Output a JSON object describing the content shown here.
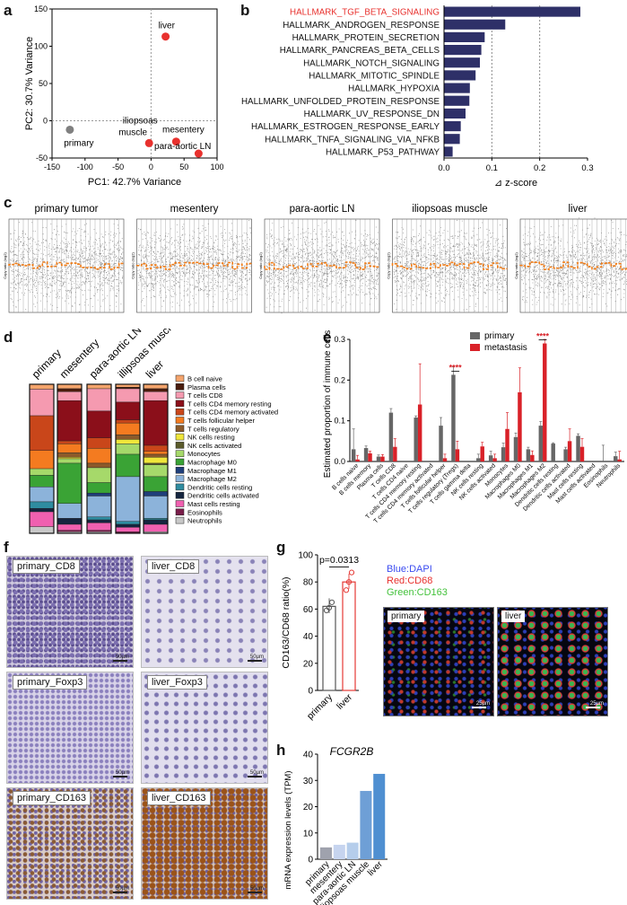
{
  "panels": {
    "a": "a",
    "b": "b",
    "c": "c",
    "d": "d",
    "e": "e",
    "f": "f",
    "g": "g",
    "h": "h"
  },
  "chart_data": [
    {
      "id": "a",
      "type": "scatter",
      "title": "",
      "xlabel": "PC1: 42.7% Variance",
      "ylabel": "PC2: 30.7% Variance",
      "xlim": [
        -150,
        100
      ],
      "ylim": [
        -50,
        150
      ],
      "xticks": [
        "-150",
        "-100",
        "-50",
        "0",
        "50",
        "100"
      ],
      "yticks": [
        "-50",
        "0",
        "50",
        "100",
        "150"
      ],
      "points": [
        {
          "label": "liver",
          "x": 22,
          "y": 113,
          "color": "#e8312e"
        },
        {
          "label": "primary",
          "x": -123,
          "y": -12,
          "color": "#808080"
        },
        {
          "label": "iliopsoas muscle",
          "x": -3,
          "y": -30,
          "color": "#e8312e"
        },
        {
          "label": "mesentery",
          "x": 38,
          "y": -28,
          "color": "#e8312e"
        },
        {
          "label": "para-aortic LN",
          "x": 72,
          "y": -44,
          "color": "#e8312e"
        }
      ]
    },
    {
      "id": "b",
      "type": "bar",
      "orientation": "horizontal",
      "xlabel": "⊿ z-score",
      "xlim": [
        0,
        0.3
      ],
      "xticks": [
        "0.0",
        "0.1",
        "0.2",
        "0.3"
      ],
      "highlight_color": "#e8312e",
      "bar_color": "#2e3068",
      "categories": [
        "HALLMARK_TGF_BETA_SIGNALING",
        "HALLMARK_ANDROGEN_RESPONSE",
        "HALLMARK_PROTEIN_SECRETION",
        "HALLMARK_PANCREAS_BETA_CELLS",
        "HALLMARK_NOTCH_SIGNALING",
        "HALLMARK_MITOTIC_SPINDLE",
        "HALLMARK_HYPOXIA",
        "HALLMARK_UNFOLDED_PROTEIN_RESPONSE",
        "HALLMARK_UV_RESPONSE_DN",
        "HALLMARK_ESTROGEN_RESPONSE_EARLY",
        "HALLMARK_TNFA_SIGNALING_VIA_NFKB",
        "HALLMARK_P53_PATHWAY"
      ],
      "values": [
        0.285,
        0.128,
        0.085,
        0.078,
        0.075,
        0.066,
        0.054,
        0.053,
        0.045,
        0.035,
        0.033,
        0.018
      ]
    },
    {
      "id": "c",
      "type": "scatter",
      "subtype": "copy-number",
      "panels": [
        "primary tumor",
        "mesentery",
        "para-aortic LN",
        "iliopsoas muscle",
        "liver"
      ],
      "ylabel": "Copy ratio (log2)"
    },
    {
      "id": "d",
      "type": "bar",
      "subtype": "stacked-100",
      "samples": [
        "primary",
        "mesentery",
        "para-aortic LN",
        "illipsoas muscle",
        "liver"
      ],
      "legend": [
        {
          "name": "B cell naive",
          "color": "#f4a46c"
        },
        {
          "name": "Plasma cells",
          "color": "#4a1c0d"
        },
        {
          "name": "T cells CD8",
          "color": "#f59ab0"
        },
        {
          "name": "T cells CD4 memory resting",
          "color": "#8b0f1a"
        },
        {
          "name": "T cells CD4 memory activated",
          "color": "#c9461a"
        },
        {
          "name": "T cells follicular helper",
          "color": "#f47b20"
        },
        {
          "name": "T cells regulatory",
          "color": "#8c5a2b"
        },
        {
          "name": "NK cells resting",
          "color": "#f0e63a"
        },
        {
          "name": "NK cells activated",
          "color": "#5a5a2a"
        },
        {
          "name": "Monocytes",
          "color": "#a6d96a"
        },
        {
          "name": "Macrophage M0",
          "color": "#3aa335"
        },
        {
          "name": "Macrophage M1",
          "color": "#1f3e7a"
        },
        {
          "name": "Macrophage M2",
          "color": "#8cb3da"
        },
        {
          "name": "Dendritic cells resting",
          "color": "#2f8ca0"
        },
        {
          "name": "Dendritic cells activated",
          "color": "#15253f"
        },
        {
          "name": "Mast cells resting",
          "color": "#f060b0"
        },
        {
          "name": "Eosinophils",
          "color": "#7a1e4a"
        },
        {
          "name": "Neutrophils",
          "color": "#c8c8c8"
        }
      ],
      "stacks": [
        [
          3,
          0,
          16,
          0,
          21,
          11,
          0,
          0,
          0,
          4,
          7,
          0,
          9,
          4,
          2,
          9,
          0,
          4
        ],
        [
          3,
          2,
          6,
          27,
          2,
          6,
          3,
          1,
          0,
          3,
          27,
          0,
          10,
          0,
          4,
          4,
          1,
          1
        ],
        [
          3,
          0,
          15,
          18,
          7,
          10,
          3,
          0,
          0,
          10,
          7,
          2,
          14,
          2,
          2,
          5,
          1,
          1
        ],
        [
          2,
          1,
          9,
          12,
          2,
          8,
          3,
          3,
          0,
          7,
          15,
          0,
          30,
          2,
          2,
          3,
          1,
          0
        ],
        [
          3,
          2,
          6,
          30,
          4,
          2,
          2,
          4,
          1,
          8,
          10,
          3,
          15,
          1,
          3,
          5,
          0,
          1
        ]
      ]
    },
    {
      "id": "e",
      "type": "bar",
      "ylabel": "Estimated proportion of immune cells",
      "ylim": [
        0,
        0.3
      ],
      "yticks": [
        "0.0",
        "0.1",
        "0.2",
        "0.3"
      ],
      "legend": [
        {
          "name": "primary",
          "color": "#666666"
        },
        {
          "name": "metastasis",
          "color": "#d92128"
        }
      ],
      "categories": [
        "B cells naive",
        "B cells memory",
        "Plasma cells",
        "T cells CD8",
        "T cells CD4 naive",
        "T cells CD4 memory resting",
        "T cells CD4 memory activated",
        "T cells follicular helper",
        "T cells regulatory (Tregs)",
        "T cells gamma delta",
        "NK cells resting",
        "NK cells activated",
        "Monocytes",
        "Macrophages M0",
        "Macrophages M1",
        "Macrophages M2",
        "Dendritic cells resting",
        "Dendritic cells activated",
        "Mast cells resting",
        "Mast cells activated",
        "Eosinophils",
        "Neutrophils"
      ],
      "series": [
        {
          "name": "primary",
          "values": [
            0.03,
            0.033,
            0.012,
            0.12,
            0.0,
            0.108,
            0.0,
            0.088,
            0.213,
            0.0,
            0.008,
            0.015,
            0.035,
            0.06,
            0.03,
            0.088,
            0.044,
            0.03,
            0.063,
            0.0,
            0.0,
            0.013
          ]
        },
        {
          "name": "metastasis",
          "values": [
            0.005,
            0.02,
            0.012,
            0.036,
            0.0,
            0.14,
            0.0,
            0.008,
            0.03,
            0.0,
            0.037,
            0.008,
            0.08,
            0.17,
            0.016,
            0.29,
            0.0,
            0.05,
            0.036,
            0.0,
            0.0,
            0.005
          ]
        }
      ],
      "errors": [
        [
          0.05,
          0.005,
          0.004,
          0.01,
          0,
          0.004,
          0,
          0.02,
          0.02,
          0,
          0.01,
          0.01,
          0.01,
          0.01,
          0.005,
          0.01,
          0.002,
          0.005,
          0.005,
          0,
          0.04,
          0.01
        ],
        [
          0.01,
          0.005,
          0.005,
          0.02,
          0,
          0.1,
          0,
          0.01,
          0.02,
          0,
          0.01,
          0.01,
          0.04,
          0.06,
          0.01,
          0.01,
          0,
          0.03,
          0.02,
          0,
          0,
          0.02
        ]
      ],
      "significance": [
        {
          "category": "T cells regulatory (Tregs)",
          "label": "****"
        },
        {
          "category": "Macrophages M2",
          "label": "****"
        }
      ]
    },
    {
      "id": "g",
      "type": "bar",
      "ylabel": "CD163/CD68 ratio(%)",
      "ylim": [
        0,
        100
      ],
      "yticks": [
        "0",
        "20",
        "40",
        "60",
        "80",
        "100"
      ],
      "categories": [
        "primary",
        "liver"
      ],
      "values": [
        62,
        80
      ],
      "points": [
        [
          59,
          61,
          65
        ],
        [
          74,
          80,
          87
        ]
      ],
      "pvalue": "p=0.0313",
      "colors": [
        "#555555",
        "#e53935"
      ]
    },
    {
      "id": "h",
      "type": "bar",
      "title": "FCGR2B",
      "ylabel": "mRNA expression levels (TPM)",
      "ylim": [
        0,
        40
      ],
      "yticks": [
        "0",
        "10",
        "20",
        "30",
        "40"
      ],
      "categories": [
        "primary",
        "mesentery",
        "para-aortic LN",
        "iliopsoas muscle",
        "liver"
      ],
      "values": [
        4.5,
        5.5,
        6.3,
        26,
        32.5
      ],
      "colors": [
        "#9fa2ad",
        "#c6d4ef",
        "#b5cdeb",
        "#6e9fd6",
        "#4f8fd1"
      ]
    }
  ],
  "micrographs": {
    "rows": [
      {
        "left": "primary_CD8",
        "right": "liver_CD8",
        "left_bar": "50µm",
        "right_bar": "50µm"
      },
      {
        "left": "primary_Foxp3",
        "right": "liver_Foxp3",
        "left_bar": "50µm",
        "right_bar": "50µm"
      },
      {
        "left": "primary_CD163",
        "right": "liver_CD163",
        "left_bar": "50µm",
        "right_bar": "50µm"
      }
    ],
    "fluor_legend": [
      {
        "text": "Blue:DAPI",
        "color": "#3b4cf0"
      },
      {
        "text": "Red:CD68",
        "color": "#e8312e"
      },
      {
        "text": "Green:CD163",
        "color": "#44c23c"
      }
    ],
    "fluor_panels": [
      {
        "label": "primary",
        "bar": "25µm"
      },
      {
        "label": "liver",
        "bar": "25µm"
      }
    ]
  }
}
